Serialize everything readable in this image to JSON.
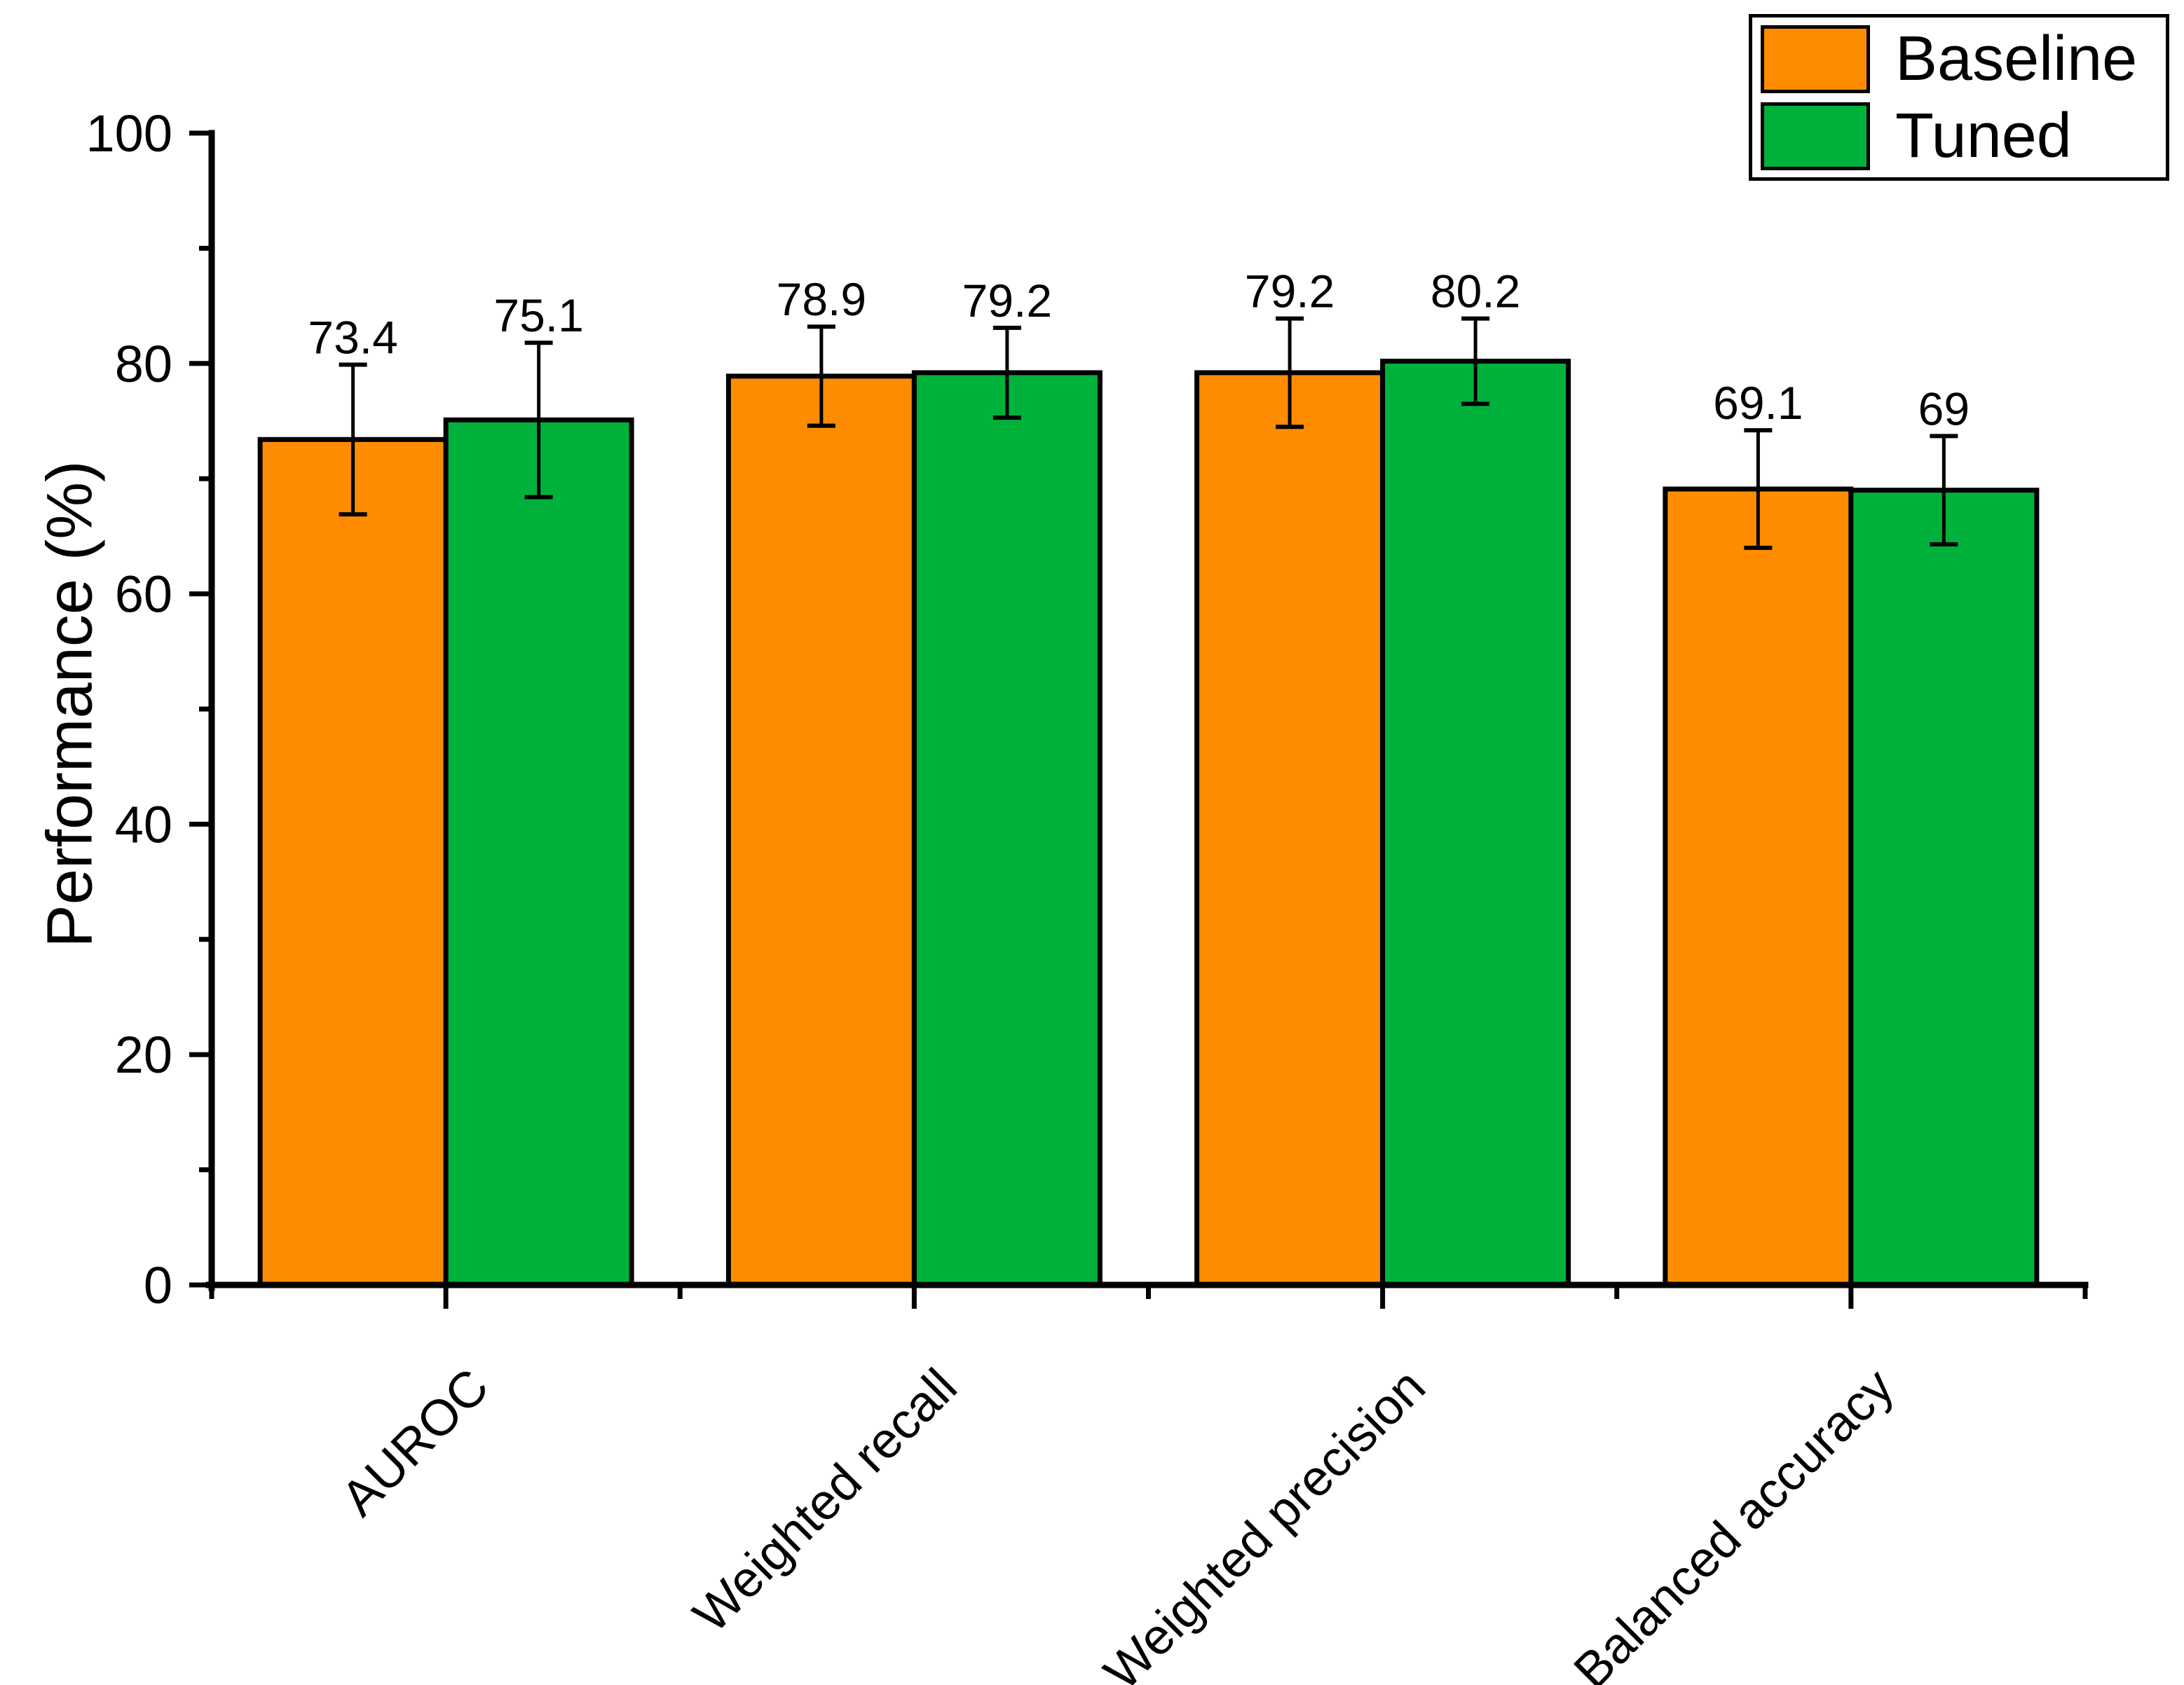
{
  "chart_data": {
    "type": "bar",
    "title": "",
    "xlabel": "",
    "ylabel": "Performance (%)",
    "ylim": [
      0,
      100
    ],
    "yticks_major": [
      0,
      20,
      40,
      60,
      80,
      100
    ],
    "yticks_minor": [
      10,
      30,
      50,
      70,
      90
    ],
    "grid": false,
    "legend_position": "top-right",
    "categories": [
      "AUROC",
      "Weighted recall",
      "Weighted precision",
      "Balanced accuracy"
    ],
    "series": [
      {
        "name": "Baseline",
        "color": "#FF8C00",
        "values": [
          73.4,
          78.9,
          79.2,
          69.1
        ],
        "errors": [
          6.5,
          4.3,
          4.7,
          5.1
        ],
        "labels": [
          "73.4",
          "78.9",
          "79.2",
          "69.1"
        ]
      },
      {
        "name": "Tuned",
        "color": "#00B23C",
        "values": [
          75.1,
          79.2,
          80.2,
          69
        ],
        "errors": [
          6.7,
          3.9,
          3.7,
          4.7
        ],
        "labels": [
          "75.1",
          "79.2",
          "80.2",
          "69"
        ]
      }
    ],
    "colors": {
      "bar_outline": "#000000",
      "axis": "#000000",
      "text": "#000000",
      "background": "#ffffff"
    }
  }
}
